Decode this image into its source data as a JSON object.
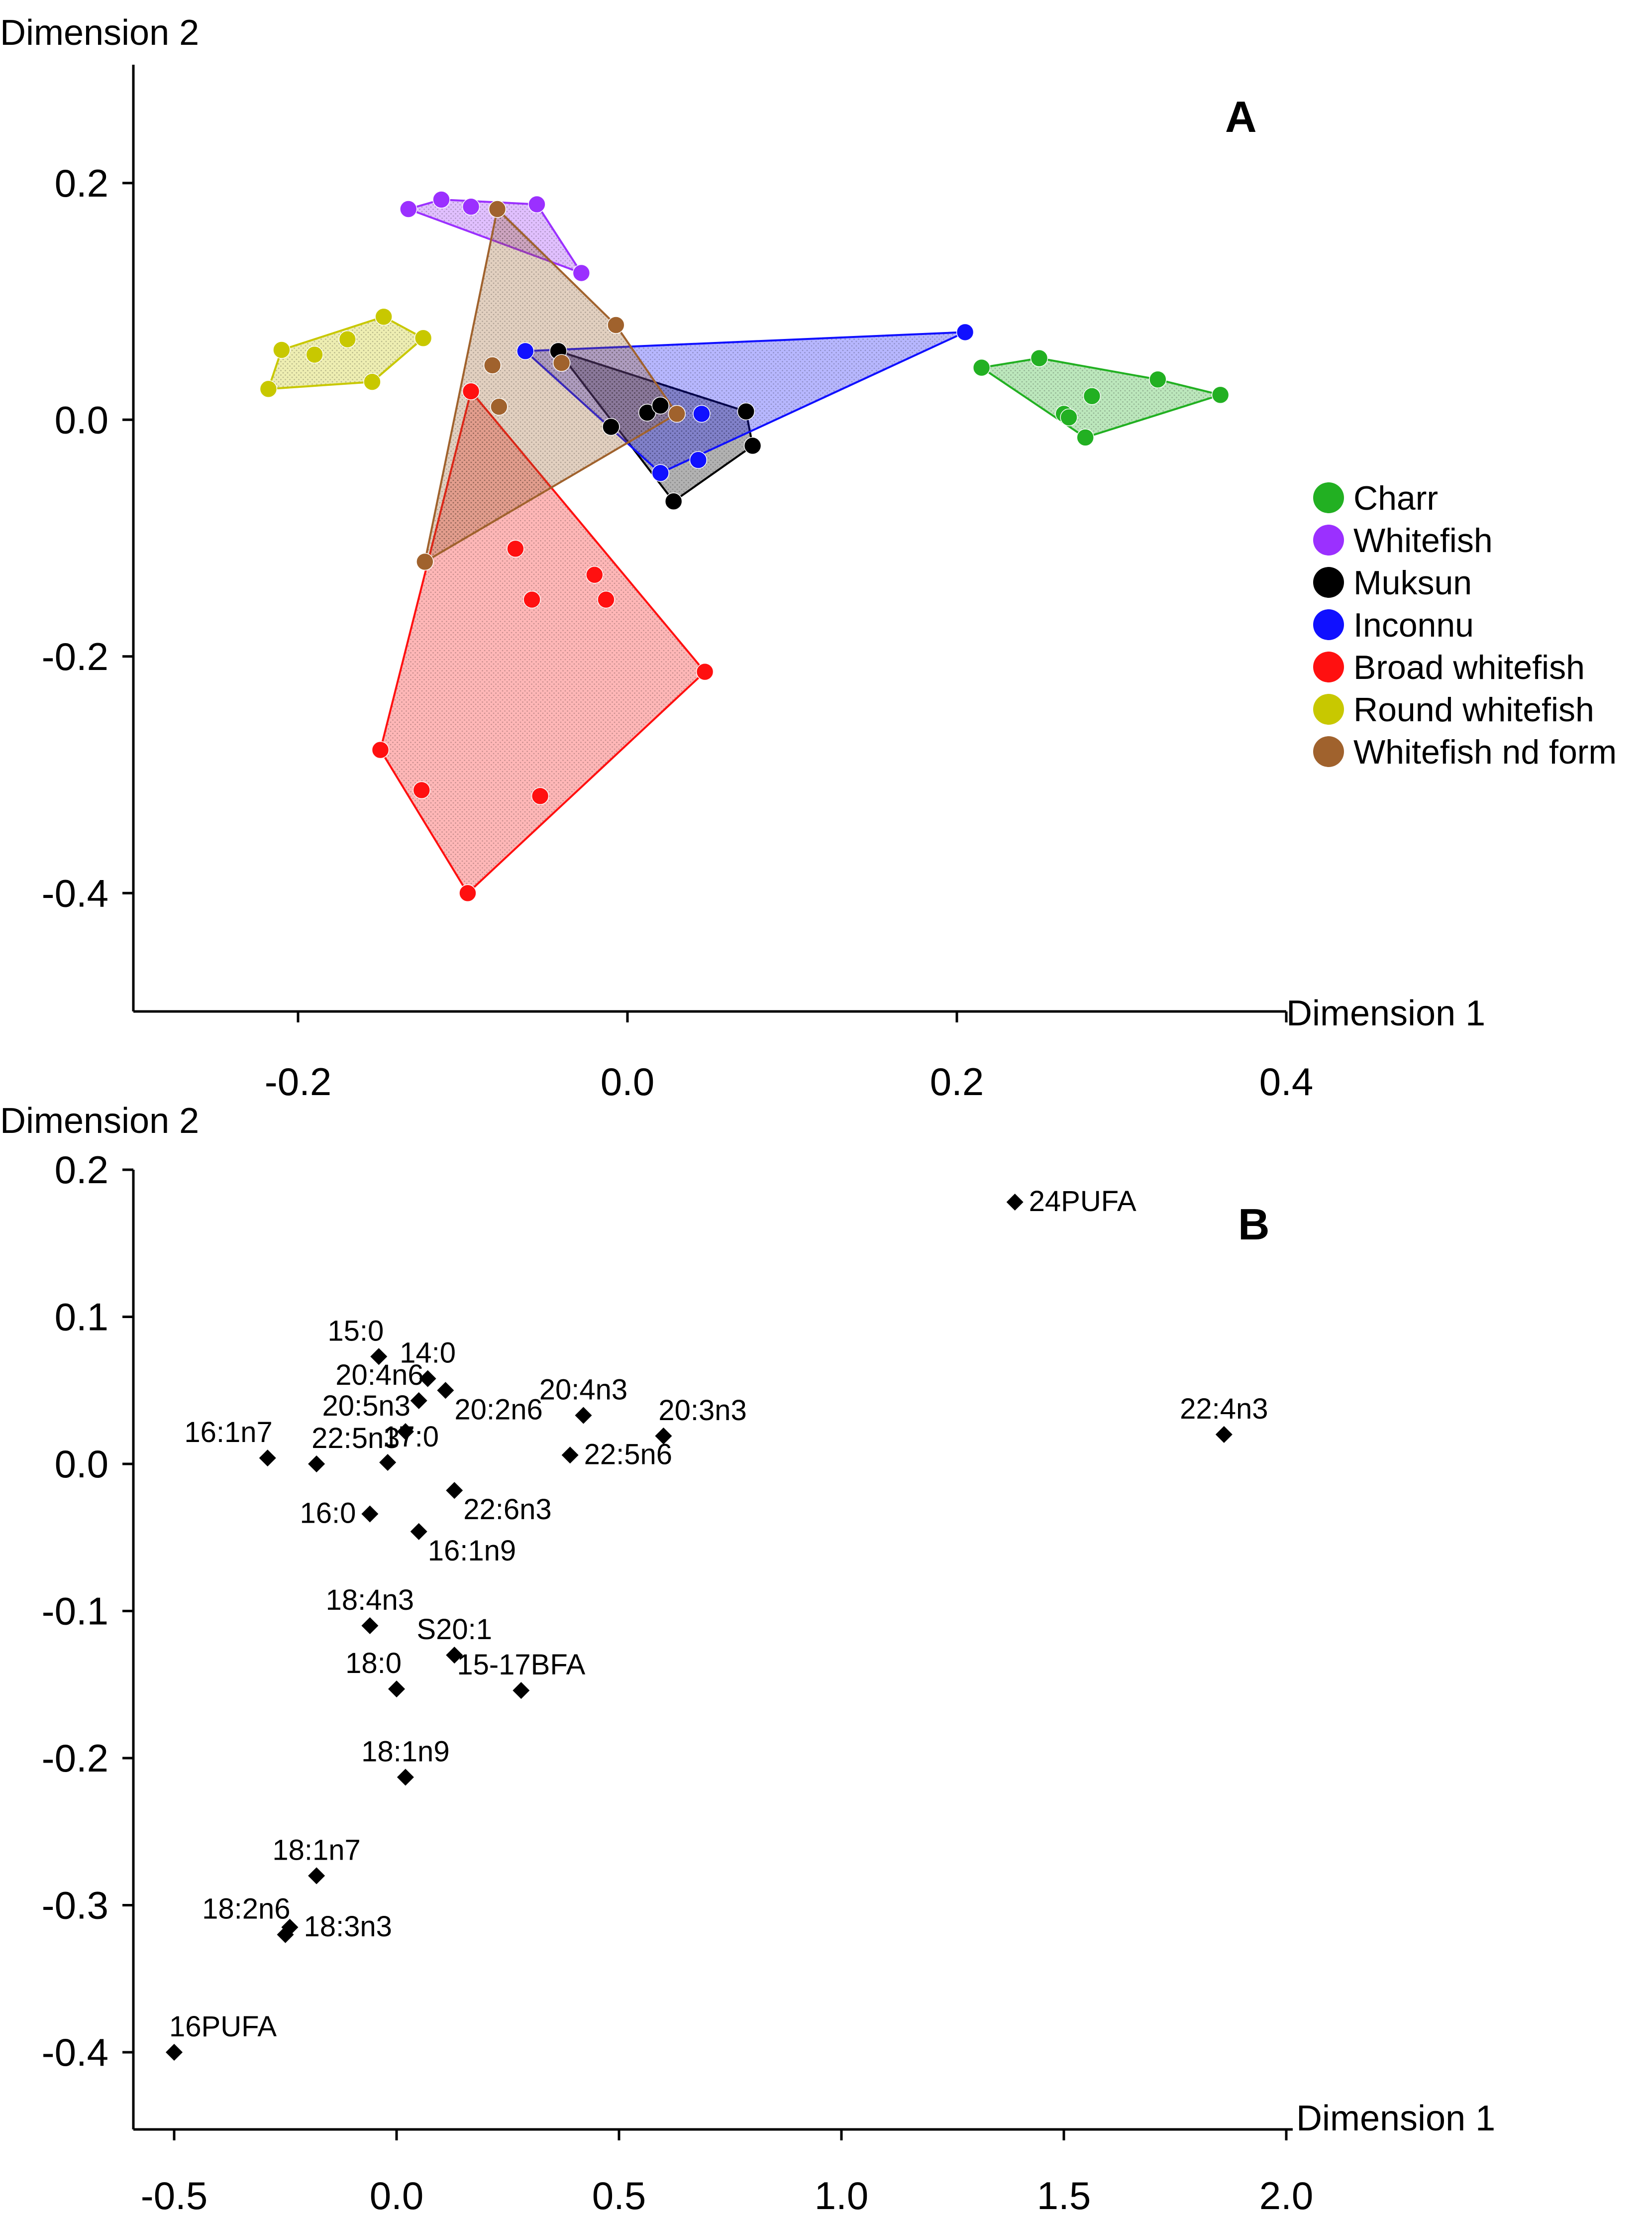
{
  "chart_data": [
    {
      "type": "scatter",
      "panel": "A",
      "xlabel": "Dimension 1",
      "ylabel": "Dimension 2",
      "xlim": [
        -0.3,
        0.4
      ],
      "ylim": [
        -0.5,
        0.3
      ],
      "xticks": [
        {
          "value": -0.2,
          "label": "-0.2"
        },
        {
          "value": 0.0,
          "label": "0.0"
        },
        {
          "value": 0.2,
          "label": "0.2"
        },
        {
          "value": 0.4,
          "label": "0.4"
        }
      ],
      "yticks": [
        {
          "value": 0.2,
          "label": "0.2"
        },
        {
          "value": 0.0,
          "label": "0.0"
        },
        {
          "value": -0.2,
          "label": "-0.2"
        },
        {
          "value": -0.4,
          "label": "-0.4"
        }
      ],
      "legend_position": "right",
      "series": [
        {
          "name": "Charr",
          "color": "#22b022",
          "points": [
            [
              0.215,
              0.044
            ],
            [
              0.25,
              0.052
            ],
            [
              0.265,
              0.005
            ],
            [
              0.268,
              0.002
            ],
            [
              0.278,
              -0.015
            ],
            [
              0.282,
              0.02
            ],
            [
              0.322,
              0.034
            ],
            [
              0.36,
              0.021
            ]
          ],
          "hull": [
            [
              0.215,
              0.044
            ],
            [
              0.25,
              0.052
            ],
            [
              0.322,
              0.034
            ],
            [
              0.36,
              0.021
            ],
            [
              0.278,
              -0.015
            ]
          ]
        },
        {
          "name": "Whitefish",
          "color": "#9b30ff",
          "points": [
            [
              -0.133,
              0.178
            ],
            [
              -0.113,
              0.186
            ],
            [
              -0.095,
              0.18
            ],
            [
              -0.055,
              0.182
            ],
            [
              -0.028,
              0.124
            ]
          ],
          "hull": [
            [
              -0.133,
              0.178
            ],
            [
              -0.113,
              0.186
            ],
            [
              -0.055,
              0.182
            ],
            [
              -0.028,
              0.124
            ]
          ]
        },
        {
          "name": "Muksun",
          "color": "#000000",
          "points": [
            [
              -0.042,
              0.058
            ],
            [
              -0.01,
              -0.006
            ],
            [
              0.012,
              0.006
            ],
            [
              0.02,
              0.012
            ],
            [
              0.028,
              -0.069
            ],
            [
              0.072,
              0.007
            ],
            [
              0.076,
              -0.022
            ]
          ],
          "hull": [
            [
              -0.042,
              0.058
            ],
            [
              0.072,
              0.007
            ],
            [
              0.076,
              -0.022
            ],
            [
              0.028,
              -0.069
            ]
          ]
        },
        {
          "name": "Inconnu",
          "color": "#1010ff",
          "points": [
            [
              -0.062,
              0.058
            ],
            [
              0.02,
              -0.045
            ],
            [
              0.043,
              -0.034
            ],
            [
              0.045,
              0.005
            ],
            [
              0.205,
              0.074
            ]
          ],
          "hull": [
            [
              -0.062,
              0.058
            ],
            [
              0.205,
              0.074
            ],
            [
              0.02,
              -0.045
            ]
          ]
        },
        {
          "name": "Broad whitefish",
          "color": "#ff1010",
          "points": [
            [
              -0.095,
              0.024
            ],
            [
              -0.068,
              -0.109
            ],
            [
              -0.058,
              -0.152
            ],
            [
              -0.02,
              -0.131
            ],
            [
              -0.013,
              -0.152
            ],
            [
              0.047,
              -0.213
            ],
            [
              -0.15,
              -0.279
            ],
            [
              -0.125,
              -0.313
            ],
            [
              -0.053,
              -0.318
            ],
            [
              -0.097,
              -0.4
            ]
          ],
          "hull": [
            [
              -0.095,
              0.024
            ],
            [
              0.047,
              -0.213
            ],
            [
              -0.097,
              -0.4
            ],
            [
              -0.15,
              -0.279
            ]
          ]
        },
        {
          "name": "Round whitefish",
          "color": "#c8c800",
          "points": [
            [
              -0.21,
              0.059
            ],
            [
              -0.19,
              0.055
            ],
            [
              -0.17,
              0.068
            ],
            [
              -0.148,
              0.087
            ],
            [
              -0.155,
              0.032
            ],
            [
              -0.124,
              0.069
            ],
            [
              -0.218,
              0.026
            ]
          ],
          "hull": [
            [
              -0.218,
              0.026
            ],
            [
              -0.21,
              0.059
            ],
            [
              -0.148,
              0.087
            ],
            [
              -0.124,
              0.069
            ],
            [
              -0.155,
              0.032
            ]
          ]
        },
        {
          "name": "Whitefish nd form",
          "color": "#a0622d",
          "points": [
            [
              -0.079,
              0.178
            ],
            [
              -0.007,
              0.08
            ],
            [
              -0.082,
              0.046
            ],
            [
              -0.04,
              0.048
            ],
            [
              -0.078,
              0.011
            ],
            [
              0.03,
              0.005
            ],
            [
              -0.123,
              -0.12
            ]
          ],
          "hull": [
            [
              -0.079,
              0.178
            ],
            [
              -0.007,
              0.08
            ],
            [
              0.03,
              0.005
            ],
            [
              -0.123,
              -0.12
            ]
          ]
        }
      ]
    },
    {
      "type": "scatter",
      "panel": "B",
      "xlabel": "Dimension 1",
      "ylabel": "Dimension 2",
      "xlim": [
        -0.6,
        2.0
      ],
      "ylim": [
        -0.45,
        0.2
      ],
      "xticks": [
        {
          "value": -0.5,
          "label": "-0.5"
        },
        {
          "value": 0.0,
          "label": "0.0"
        },
        {
          "value": 0.5,
          "label": "0.5"
        },
        {
          "value": 1.0,
          "label": "1.0"
        },
        {
          "value": 1.5,
          "label": "1.5"
        },
        {
          "value": 2.0,
          "label": "2.0"
        }
      ],
      "yticks": [
        {
          "value": 0.2,
          "label": "0.2"
        },
        {
          "value": 0.1,
          "label": "0.1"
        },
        {
          "value": 0.0,
          "label": "0.0"
        },
        {
          "value": -0.1,
          "label": "-0.1"
        },
        {
          "value": -0.2,
          "label": "-0.2"
        },
        {
          "value": -0.3,
          "label": "-0.3"
        },
        {
          "value": -0.4,
          "label": "-0.4"
        }
      ],
      "points": [
        {
          "label": "24PUFA",
          "x": 1.39,
          "y": 0.178,
          "anchor": "right"
        },
        {
          "label": "22:4n3",
          "x": 1.86,
          "y": 0.02,
          "anchor": "above"
        },
        {
          "label": "15:0",
          "x": -0.04,
          "y": 0.073,
          "anchor": "above-left"
        },
        {
          "label": "14:0",
          "x": 0.07,
          "y": 0.058,
          "anchor": "above"
        },
        {
          "label": "20:4n6",
          "x": 0.05,
          "y": 0.043,
          "anchor": "above-left"
        },
        {
          "label": "20:2n6",
          "x": 0.11,
          "y": 0.05,
          "anchor": "below-right"
        },
        {
          "label": "20:5n3",
          "x": 0.02,
          "y": 0.022,
          "anchor": "above-left"
        },
        {
          "label": "16:1n7",
          "x": -0.29,
          "y": 0.004,
          "anchor": "above-left"
        },
        {
          "label": "22:5n3",
          "x": -0.18,
          "y": 0.0,
          "anchor": "above-right"
        },
        {
          "label": "17:0",
          "x": -0.02,
          "y": 0.001,
          "anchor": "above-right"
        },
        {
          "label": "20:4n3",
          "x": 0.42,
          "y": 0.033,
          "anchor": "above"
        },
        {
          "label": "20:3n3",
          "x": 0.6,
          "y": 0.019,
          "anchor": "above-right"
        },
        {
          "label": "22:5n6",
          "x": 0.39,
          "y": 0.006,
          "anchor": "right"
        },
        {
          "label": "22:6n3",
          "x": 0.13,
          "y": -0.018,
          "anchor": "below-right"
        },
        {
          "label": "16:0",
          "x": -0.06,
          "y": -0.034,
          "anchor": "left"
        },
        {
          "label": "16:1n9",
          "x": 0.05,
          "y": -0.046,
          "anchor": "below-right"
        },
        {
          "label": "18:4n3",
          "x": -0.06,
          "y": -0.11,
          "anchor": "above"
        },
        {
          "label": "S20:1",
          "x": 0.13,
          "y": -0.13,
          "anchor": "above"
        },
        {
          "label": "15-17BFA",
          "x": 0.28,
          "y": -0.154,
          "anchor": "above"
        },
        {
          "label": "18:0",
          "x": 0.0,
          "y": -0.153,
          "anchor": "above-left"
        },
        {
          "label": "18:1n9",
          "x": 0.02,
          "y": -0.213,
          "anchor": "above"
        },
        {
          "label": "18:1n7",
          "x": -0.18,
          "y": -0.28,
          "anchor": "above"
        },
        {
          "label": "18:2n6",
          "x": -0.25,
          "y": -0.32,
          "anchor": "above-left"
        },
        {
          "label": "18:3n3",
          "x": -0.24,
          "y": -0.315,
          "anchor": "right"
        },
        {
          "label": "16PUFA",
          "x": -0.5,
          "y": -0.4,
          "anchor": "above-right"
        }
      ]
    }
  ]
}
